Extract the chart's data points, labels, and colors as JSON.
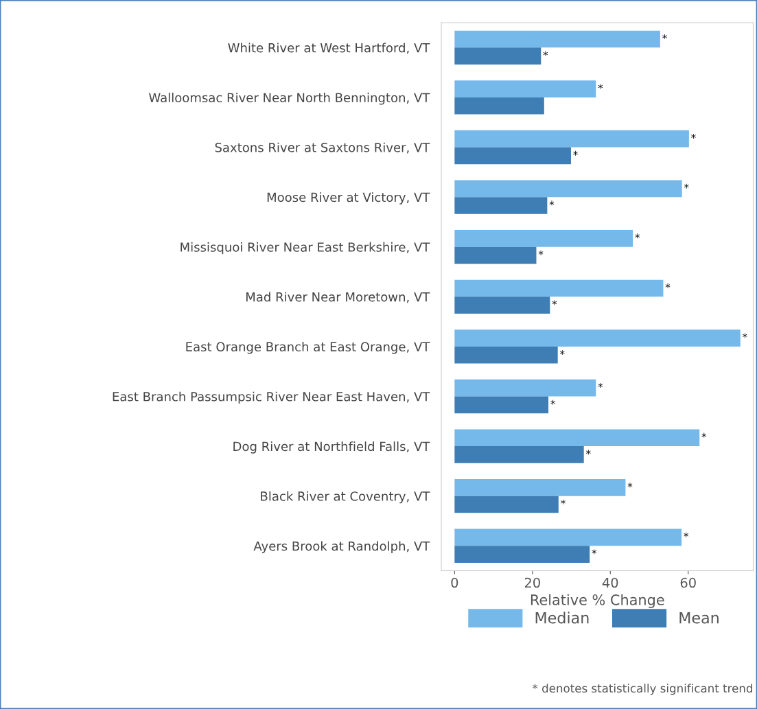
{
  "chart_data": {
    "type": "bar",
    "orientation": "horizontal",
    "xlabel": "Relative % Change",
    "categories": [
      "White River at West Hartford, VT",
      "Walloomsac River Near North Bennington, VT",
      "Saxtons River at Saxtons River, VT",
      "Moose River at Victory, VT",
      "Missisquoi River Near East Berkshire, VT",
      "Mad River Near Moretown, VT",
      "East Orange Branch at East Orange, VT",
      "East Branch Passumpsic River Near East Haven, VT",
      "Dog River at Northfield Falls, VT",
      "Black River at Coventry, VT",
      "Ayers Brook at Randolph, VT"
    ],
    "series": [
      {
        "name": "Median",
        "color": "#74b9e9",
        "values": [
          52.8,
          36.3,
          60.2,
          58.4,
          45.8,
          53.6,
          73.4,
          36.3,
          62.9,
          43.9,
          58.3
        ],
        "value_labels": [
          "*",
          "*",
          "*",
          "*",
          "*",
          "*",
          "*",
          "*",
          "*",
          "*",
          "*"
        ]
      },
      {
        "name": "Mean",
        "color": "#3f7db5",
        "values": [
          22.2,
          23.0,
          29.9,
          23.8,
          21.0,
          24.5,
          26.5,
          24.1,
          33.2,
          26.7,
          34.7
        ],
        "value_labels": [
          "*",
          null,
          "*",
          "*",
          "*",
          "*",
          "*",
          "*",
          "*",
          "*",
          "*"
        ]
      }
    ],
    "xlim": [
      -3.4,
      76.7
    ],
    "xticks": [
      0,
      20,
      40,
      60
    ],
    "grid": false,
    "legend": "bottom",
    "annotations": [
      "* denotes statistically significant trend"
    ]
  }
}
